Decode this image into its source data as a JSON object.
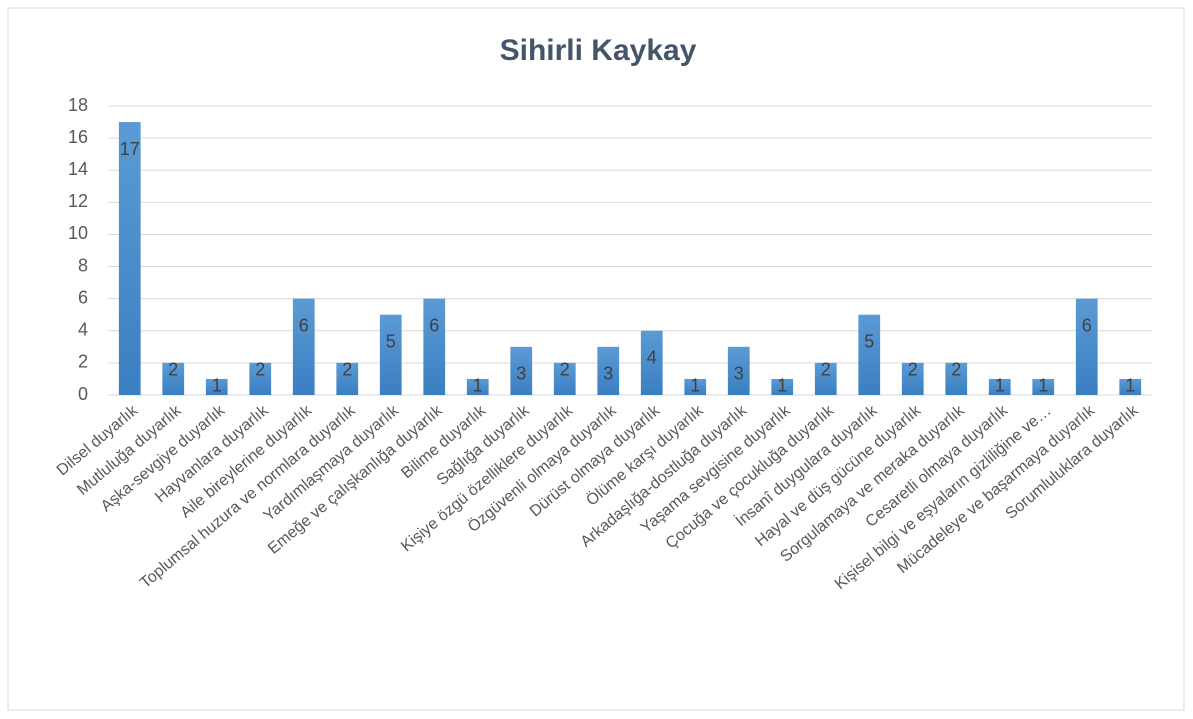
{
  "chart_data": {
    "type": "bar",
    "title": "Sihirli Kaykay",
    "categories": [
      "Dilsel duyarlık",
      "Mutluluğa duyarlık",
      "Aşka-sevgiye duyarlık",
      "Hayvanlara duyarlık",
      "Aile bireylerine duyarlık",
      "Toplumsal huzura ve normlara duyarlık",
      "Yardımlaşmaya duyarlık",
      "Emeğe ve çalışkanlığa duyarlık",
      "Bilime duyarlık",
      "Sağlığa duyarlık",
      "Kişiye özgü özelliklere duyarlık",
      "Özgüvenli olmaya duyarlık",
      "Dürüst olmaya duyarlık",
      "Ölüme karşı duyarlık",
      "Arkadaşlığa-dostluğa duyarlık",
      "Yaşama sevgisine duyarlık",
      "Çocuğa ve çocukluğa duyarlık",
      "İnsanî duygulara duyarlık",
      "Hayal ve düş gücüne duyarlık",
      "Sorgulamaya ve meraka duyarlık",
      "Cesaretli olmaya duyarlık",
      "Kişisel bilgi ve eşyaların gizliliğine ve…",
      "Mücadeleye ve başarmaya duyarlık",
      "Sorumluluklara duyarlık"
    ],
    "values": [
      17,
      2,
      1,
      2,
      6,
      2,
      5,
      6,
      1,
      3,
      2,
      3,
      4,
      1,
      3,
      1,
      2,
      5,
      2,
      2,
      1,
      1,
      6,
      1
    ],
    "color": "#5b9bd5",
    "ylim": [
      0,
      18
    ],
    "yticks": [
      0,
      2,
      4,
      6,
      8,
      10,
      12,
      14,
      16,
      18
    ],
    "grid": true
  }
}
